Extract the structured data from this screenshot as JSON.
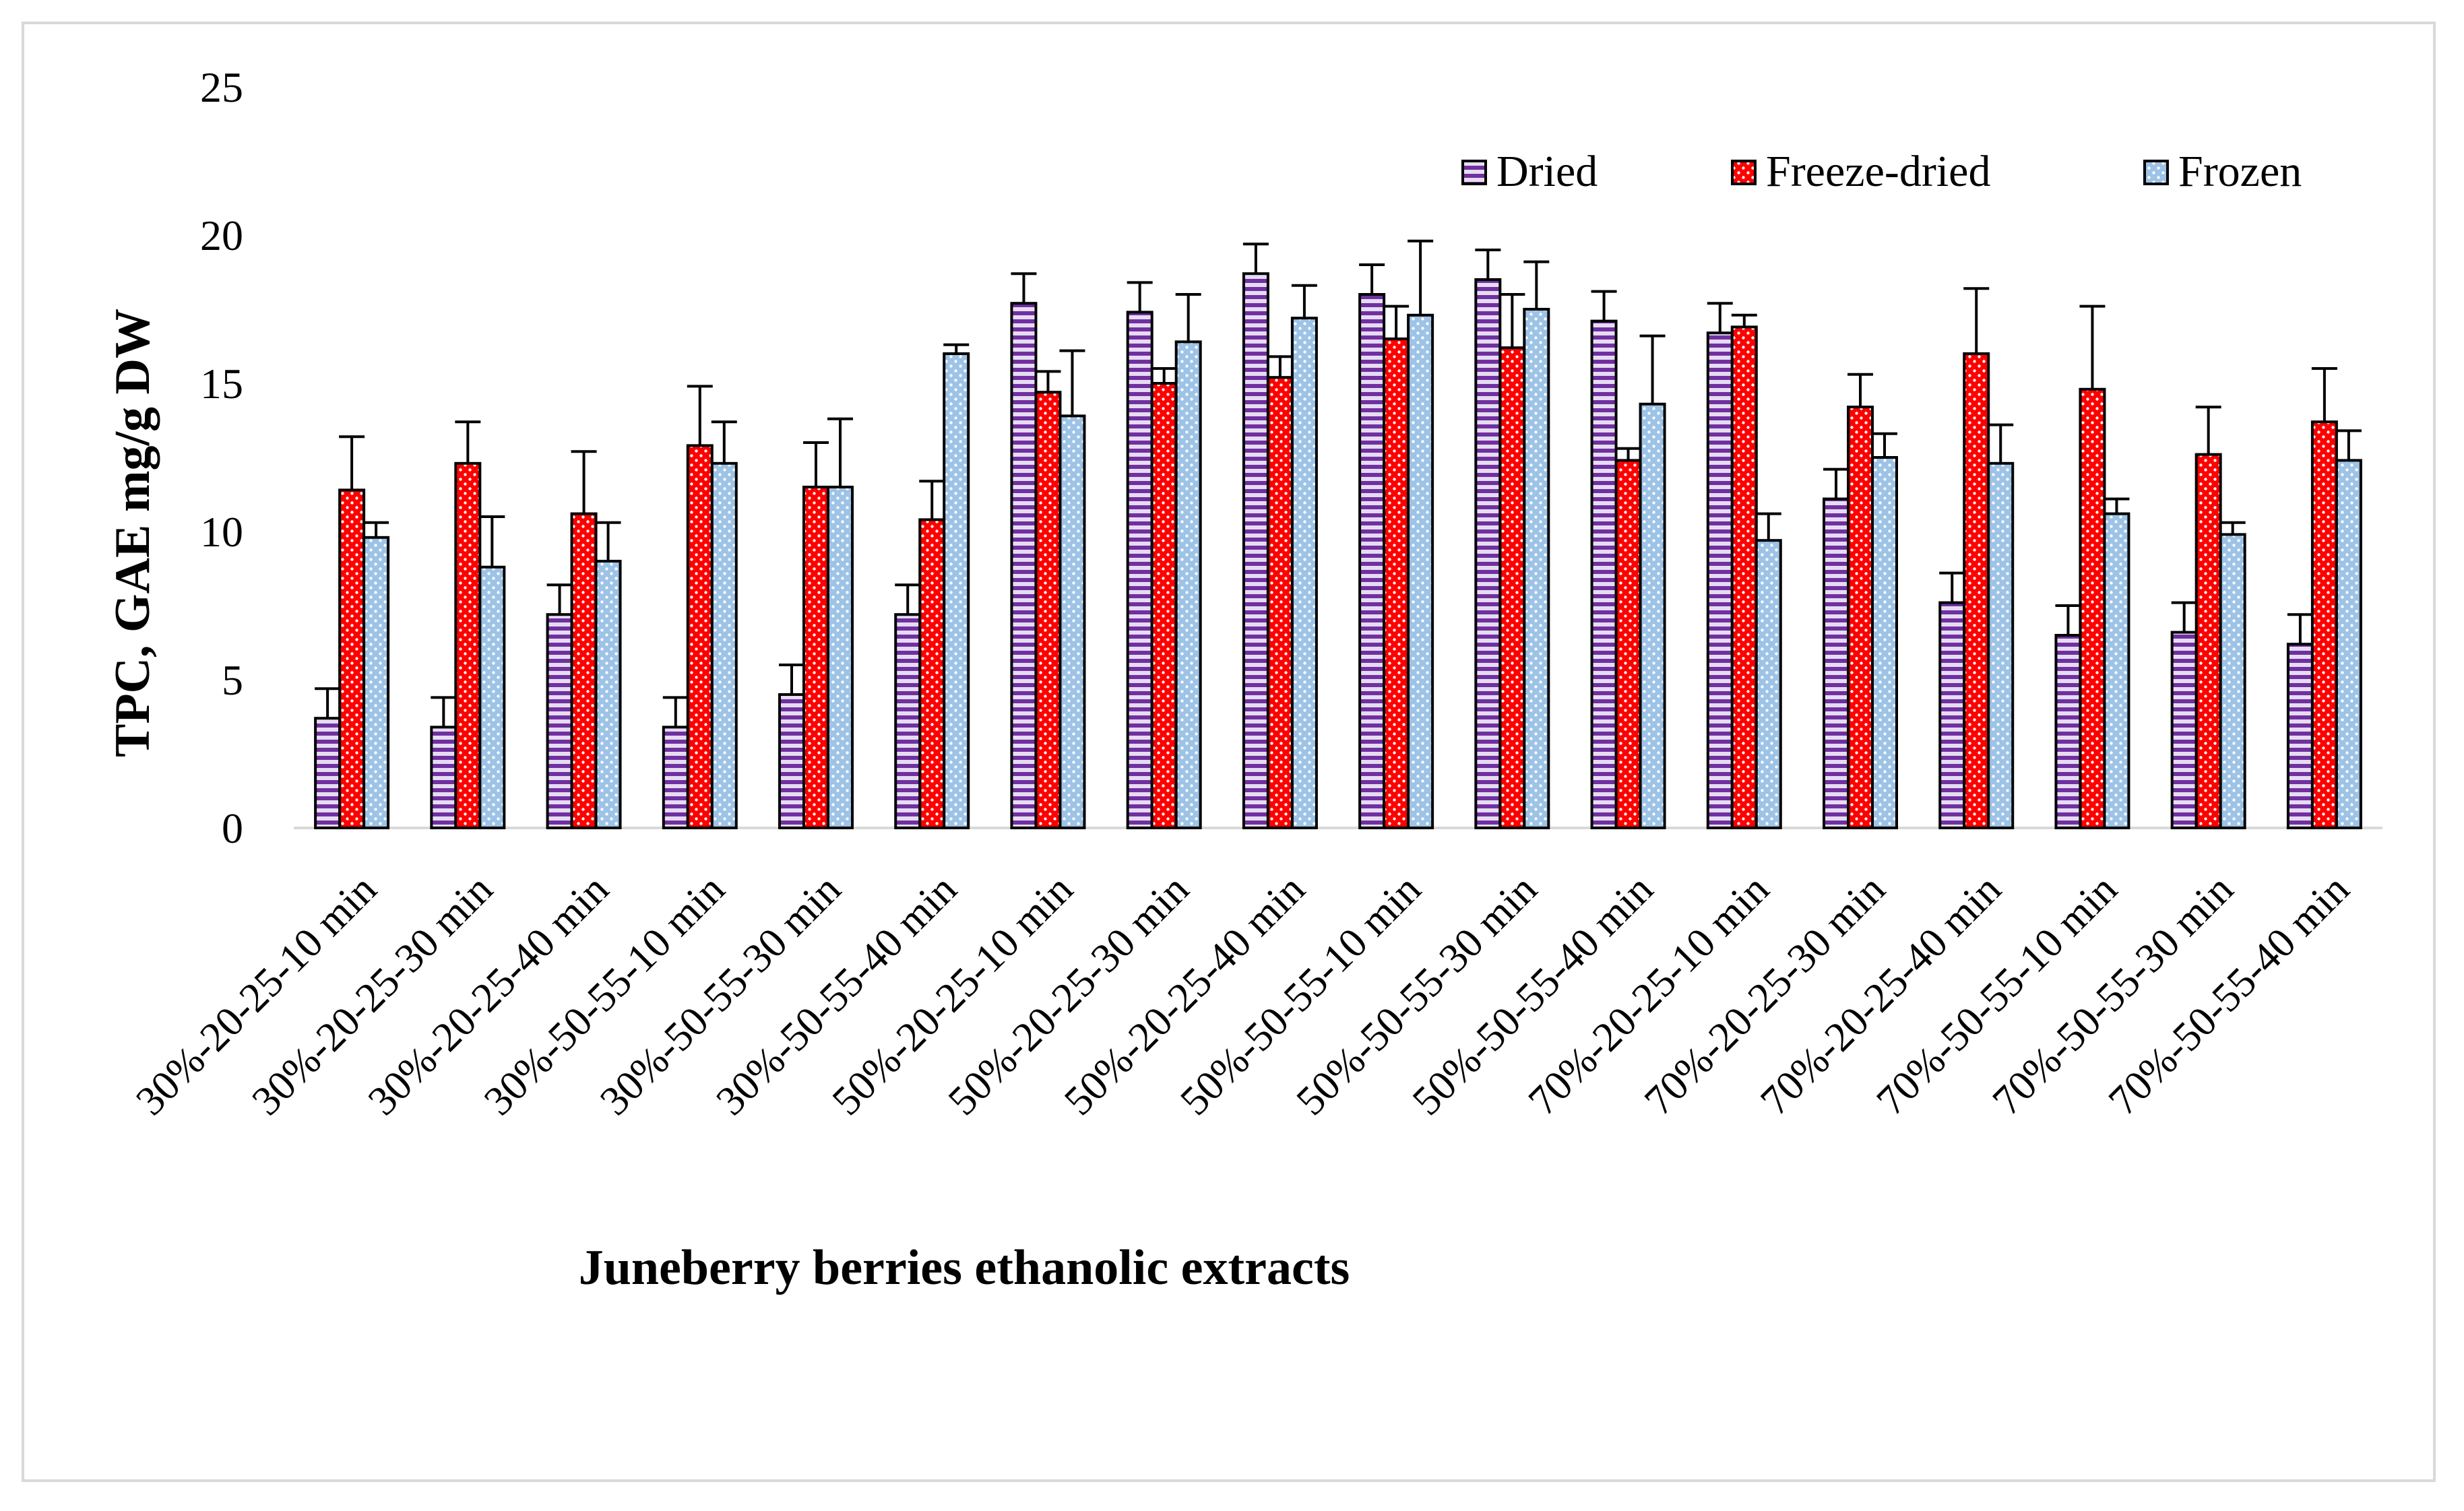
{
  "chart_data": {
    "type": "bar",
    "title": "",
    "xlabel": "Juneberry berries ethanolic extracts",
    "ylabel": "TPC, GAE mg/g DW",
    "ylim": [
      0,
      25
    ],
    "yticks": [
      "0",
      "5",
      "10",
      "15",
      "20",
      "25"
    ],
    "grid": false,
    "legend_position": "top-right",
    "categories": [
      "30%-20-25-10 min",
      "30%-20-25-30 min",
      "30%-20-25-40 min",
      "30%-50-55-10 min",
      "30%-50-55-30 min",
      "30%-50-55-40 min",
      "50%-20-25-10 min",
      "50%-20-25-30 min",
      "50%-20-25-40 min",
      "50%-50-55-10 min",
      "50%-50-55-30 min",
      "50%-50-55-40 min",
      "70%-20-25-10 min",
      "70%-20-25-30 min",
      "70%-20-25-40 min",
      "70%-50-55-10 min",
      "70%-50-55-30 min",
      "70%-50-55-40 min"
    ],
    "series": [
      {
        "name": "Dried",
        "color": "#7030a0",
        "pattern": "horizontal-stripes",
        "values": [
          3.7,
          3.4,
          7.2,
          3.4,
          4.5,
          7.2,
          17.7,
          17.4,
          18.7,
          18.0,
          18.5,
          17.1,
          16.7,
          11.1,
          7.6,
          6.5,
          6.6,
          6.2
        ],
        "errors": [
          1.0,
          1.0,
          1.0,
          1.0,
          1.0,
          1.0,
          1.0,
          1.0,
          1.0,
          1.0,
          1.0,
          1.0,
          1.0,
          1.0,
          1.0,
          1.0,
          1.0,
          1.0
        ]
      },
      {
        "name": "Freeze-dried",
        "color": "#ff0000",
        "pattern": "dots",
        "values": [
          11.4,
          12.3,
          10.6,
          12.9,
          11.5,
          10.4,
          14.7,
          15.0,
          15.2,
          16.5,
          16.2,
          12.4,
          16.9,
          14.2,
          16.0,
          14.8,
          12.6,
          13.7
        ],
        "errors": [
          1.8,
          1.4,
          2.1,
          2.0,
          1.5,
          1.3,
          0.7,
          0.5,
          0.7,
          1.1,
          1.8,
          0.4,
          0.4,
          1.1,
          2.2,
          2.8,
          1.6,
          1.8
        ]
      },
      {
        "name": "Frozen",
        "color": "#9dc3e6",
        "pattern": "dots",
        "values": [
          9.8,
          8.8,
          9.0,
          12.3,
          11.5,
          16.0,
          13.9,
          16.4,
          17.2,
          17.3,
          17.5,
          14.3,
          9.7,
          12.5,
          12.3,
          10.6,
          9.9,
          12.4
        ],
        "errors": [
          0.5,
          1.7,
          1.3,
          1.4,
          2.3,
          0.3,
          2.2,
          1.6,
          1.1,
          2.5,
          1.6,
          2.3,
          0.9,
          0.8,
          1.3,
          0.5,
          0.4,
          1.0
        ]
      }
    ]
  }
}
